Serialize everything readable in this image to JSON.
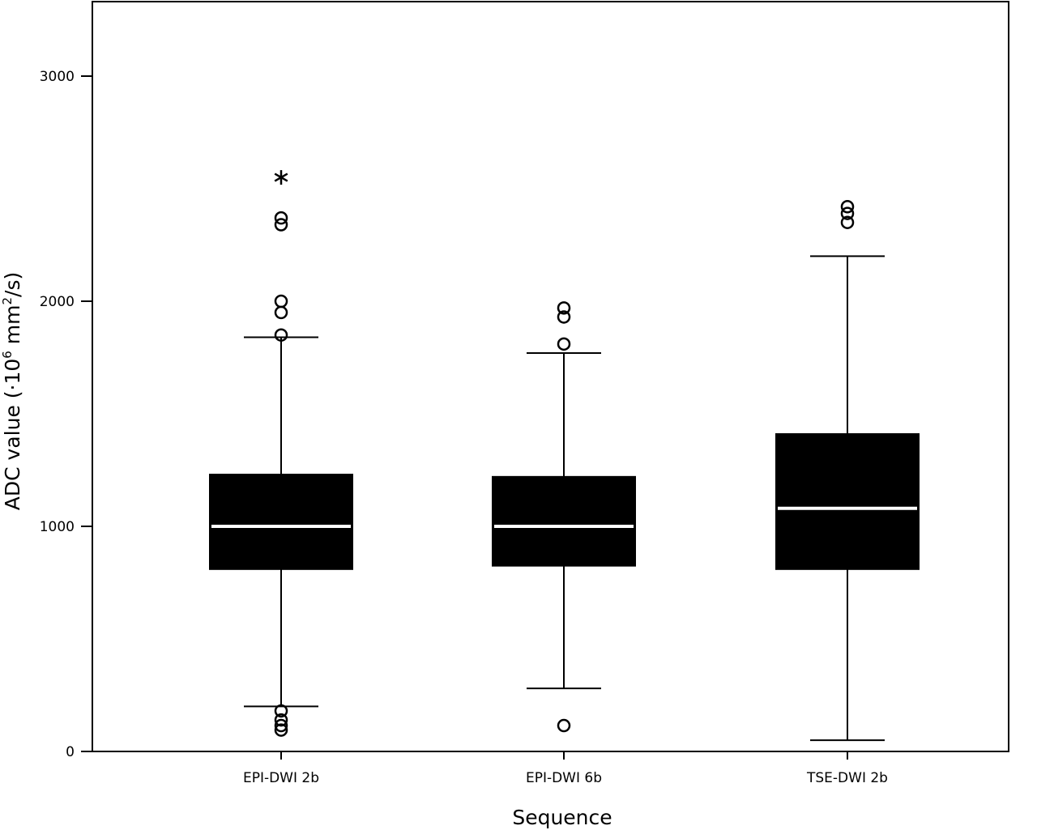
{
  "chart_data": {
    "type": "boxplot",
    "title": "",
    "xlabel": "Sequence",
    "ylabel": {
      "prefix": "ADC value (·10",
      "sup1": "6",
      "middle": " mm",
      "sup2": "2",
      "suffix": "/s)"
    },
    "ylim": [
      0,
      3000
    ],
    "yticks": [
      0,
      1000,
      2000,
      3000
    ],
    "grid": false,
    "legend": "none",
    "colors": {
      "box": "#000000",
      "median": "#ffffff",
      "whisker": "#000000"
    },
    "categories": [
      "EPI-DWI 2b",
      "EPI-DWI 6b",
      "TSE-DWI 2b"
    ],
    "boxes": [
      {
        "name": "EPI-DWI 2b",
        "whisker_low": 200,
        "q1": 810,
        "median": 1000,
        "q3": 1230,
        "whisker_high": 1840,
        "outliers": [
          95,
          115,
          140,
          180,
          1850,
          1950,
          2000,
          2340,
          2370
        ],
        "extremes": [
          2550
        ]
      },
      {
        "name": "EPI-DWI 6b",
        "whisker_low": 280,
        "q1": 825,
        "median": 1000,
        "q3": 1220,
        "whisker_high": 1770,
        "outliers": [
          115,
          1810,
          1930,
          1970
        ],
        "extremes": []
      },
      {
        "name": "TSE-DWI 2b",
        "whisker_low": 50,
        "q1": 810,
        "median": 1080,
        "q3": 1410,
        "whisker_high": 2200,
        "outliers": [
          2350,
          2390,
          2420
        ],
        "extremes": []
      }
    ]
  }
}
